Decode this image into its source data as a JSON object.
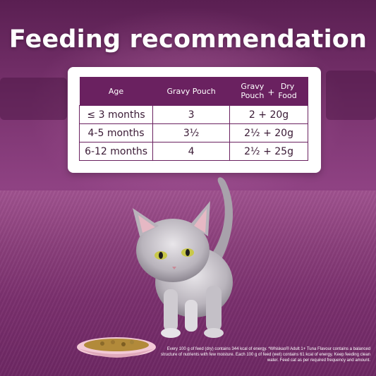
{
  "title": "Feeding recommendation",
  "table": {
    "headers": {
      "age": "Age",
      "gravy_pouch": "Gravy Pouch",
      "combo_left_line1": "Gravy",
      "combo_left_line2": "Pouch",
      "combo_plus": "+",
      "combo_right_line1": "Dry",
      "combo_right_line2": "Food"
    },
    "rows": [
      {
        "age": "≤ 3 months",
        "gravy_pouch": "3",
        "combo": "2 + 20g"
      },
      {
        "age": "4-5 months",
        "gravy_pouch": "3½",
        "combo": "2½ + 20g"
      },
      {
        "age": "6-12 months",
        "gravy_pouch": "4",
        "combo": "2½ + 25g"
      }
    ]
  },
  "footnote": "Every 100 g of feed (dry) contains 344 kcal of energy. *Whiskas® Adult 1+ Tuna Flavour contains a balanced structure of nutrients with few moisture. Each 100 g of feed (wet) contains 61 kcal of energy. Keep feeding clean water. Feed cat as per required frequency and amount.",
  "colors": {
    "brand_purple": "#6a2160",
    "background": "#7b3470",
    "title_text": "#ffffff"
  }
}
